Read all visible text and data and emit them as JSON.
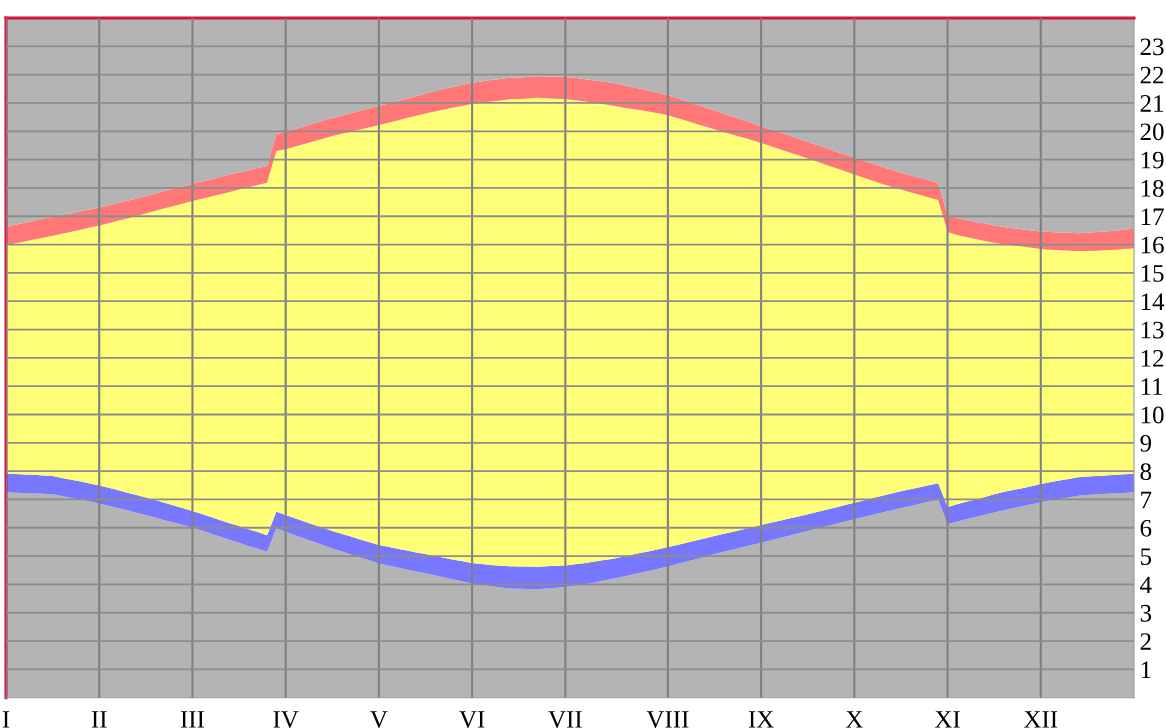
{
  "chart_data": {
    "type": "area",
    "stacked": true,
    "categories": [
      "I",
      null,
      null,
      null,
      null,
      null,
      null,
      null,
      null,
      null,
      "II",
      null,
      null,
      null,
      null,
      null,
      null,
      null,
      null,
      null,
      "III",
      null,
      null,
      null,
      null,
      null,
      null,
      null,
      null,
      null,
      "IV",
      null,
      null,
      null,
      null,
      null,
      null,
      null,
      null,
      null,
      "V",
      null,
      null,
      null,
      null,
      null,
      null,
      null,
      null,
      null,
      "VI",
      null,
      null,
      null,
      null,
      null,
      null,
      null,
      null,
      null,
      "VII",
      null,
      null,
      null,
      null,
      null,
      null,
      null,
      null,
      null,
      null,
      "VIII",
      null,
      null,
      null,
      null,
      null,
      null,
      null,
      null,
      null,
      "IX",
      null,
      null,
      null,
      null,
      null,
      null,
      null,
      null,
      null,
      "X",
      null,
      null,
      null,
      null,
      null,
      null,
      null,
      null,
      null,
      "XI",
      null,
      null,
      null,
      null,
      null,
      null,
      null,
      null,
      null,
      "XII",
      null,
      null,
      null,
      null,
      null,
      null,
      null,
      null,
      null,
      null
    ],
    "series": [
      {
        "color": "#b4b4b4",
        "values": [
          7.26,
          7.24,
          7.23,
          7.21,
          7.2,
          7.18,
          7.12,
          7.05,
          6.99,
          6.93,
          6.86,
          6.78,
          6.7,
          6.62,
          6.53,
          6.45,
          6.36,
          6.27,
          6.19,
          6.1,
          6.0,
          5.9,
          5.79,
          5.68,
          5.57,
          5.47,
          5.36,
          5.26,
          5.15,
          5.98,
          5.86,
          5.74,
          5.62,
          5.51,
          5.39,
          5.27,
          5.17,
          5.06,
          4.95,
          4.85,
          4.74,
          4.67,
          4.6,
          4.53,
          4.46,
          4.39,
          4.32,
          4.24,
          4.17,
          4.1,
          4.03,
          3.98,
          3.94,
          3.89,
          3.86,
          3.85,
          3.84,
          3.83,
          3.86,
          3.88,
          3.91,
          3.95,
          4.01,
          4.06,
          4.13,
          4.19,
          4.26,
          4.33,
          4.41,
          4.48,
          4.55,
          4.63,
          4.72,
          4.81,
          4.89,
          4.98,
          5.07,
          5.15,
          5.23,
          5.31,
          5.39,
          5.47,
          5.55,
          5.64,
          5.72,
          5.81,
          5.89,
          5.97,
          6.05,
          6.13,
          6.22,
          6.3,
          6.38,
          6.46,
          6.54,
          6.62,
          6.7,
          6.77,
          6.85,
          6.92,
          6.99,
          6.13,
          6.21,
          6.3,
          6.38,
          6.46,
          6.54,
          6.62,
          6.69,
          6.76,
          6.83,
          6.9,
          6.96,
          7.02,
          7.07,
          7.13,
          7.16,
          7.18,
          7.2,
          7.22,
          7.23,
          7.25
        ]
      },
      {
        "color": "#7777ff",
        "values": [
          0.66,
          0.66,
          0.65,
          0.66,
          0.65,
          0.65,
          0.64,
          0.65,
          0.64,
          0.63,
          0.63,
          0.63,
          0.63,
          0.62,
          0.63,
          0.62,
          0.62,
          0.61,
          0.6,
          0.59,
          0.59,
          0.59,
          0.59,
          0.59,
          0.59,
          0.59,
          0.59,
          0.59,
          0.59,
          0.59,
          0.59,
          0.6,
          0.6,
          0.6,
          0.61,
          0.62,
          0.62,
          0.63,
          0.64,
          0.64,
          0.65,
          0.66,
          0.66,
          0.67,
          0.67,
          0.68,
          0.68,
          0.7,
          0.7,
          0.72,
          0.73,
          0.74,
          0.75,
          0.77,
          0.78,
          0.78,
          0.79,
          0.79,
          0.78,
          0.78,
          0.76,
          0.76,
          0.74,
          0.74,
          0.72,
          0.71,
          0.71,
          0.71,
          0.7,
          0.69,
          0.69,
          0.69,
          0.67,
          0.66,
          0.66,
          0.65,
          0.64,
          0.64,
          0.63,
          0.63,
          0.63,
          0.63,
          0.63,
          0.61,
          0.61,
          0.59,
          0.59,
          0.59,
          0.59,
          0.59,
          0.58,
          0.58,
          0.58,
          0.59,
          0.59,
          0.59,
          0.59,
          0.59,
          0.58,
          0.58,
          0.58,
          0.6,
          0.62,
          0.62,
          0.62,
          0.63,
          0.64,
          0.64,
          0.64,
          0.64,
          0.64,
          0.65,
          0.65,
          0.65,
          0.65,
          0.65,
          0.65,
          0.65,
          0.65,
          0.65,
          0.66,
          0.66
        ]
      },
      {
        "color": "#ffff77",
        "values": [
          8.06,
          8.15,
          8.23,
          8.31,
          8.39,
          8.48,
          8.62,
          8.75,
          8.89,
          9.04,
          9.18,
          9.34,
          9.51,
          9.68,
          9.85,
          10.03,
          10.21,
          10.4,
          10.57,
          10.76,
          10.95,
          11.13,
          11.32,
          11.51,
          11.7,
          11.88,
          12.07,
          12.25,
          12.44,
          12.73,
          12.92,
          13.12,
          13.33,
          13.54,
          13.74,
          13.94,
          14.12,
          14.29,
          14.47,
          14.65,
          14.83,
          14.97,
          15.12,
          15.27,
          15.42,
          15.56,
          15.7,
          15.83,
          15.97,
          16.08,
          16.2,
          16.29,
          16.36,
          16.43,
          16.49,
          16.51,
          16.53,
          16.56,
          16.53,
          16.49,
          16.47,
          16.39,
          16.31,
          16.21,
          16.11,
          16.01,
          15.88,
          15.76,
          15.64,
          15.52,
          15.4,
          15.25,
          15.08,
          14.9,
          14.72,
          14.54,
          14.36,
          14.18,
          14.02,
          13.84,
          13.67,
          13.49,
          13.3,
          13.12,
          12.93,
          12.75,
          12.56,
          12.37,
          12.17,
          11.98,
          11.79,
          11.59,
          11.4,
          11.2,
          11.01,
          10.83,
          10.65,
          10.49,
          10.33,
          10.16,
          10.0,
          9.71,
          9.51,
          9.35,
          9.2,
          9.04,
          8.88,
          8.75,
          8.64,
          8.53,
          8.42,
          8.29,
          8.21,
          8.13,
          8.06,
          7.99,
          7.96,
          7.95,
          7.95,
          7.95,
          7.95,
          7.96
        ]
      },
      {
        "color": "#ff7777",
        "values": [
          0.65,
          0.65,
          0.66,
          0.66,
          0.67,
          0.67,
          0.67,
          0.66,
          0.66,
          0.64,
          0.64,
          0.63,
          0.63,
          0.63,
          0.62,
          0.61,
          0.61,
          0.61,
          0.61,
          0.61,
          0.61,
          0.61,
          0.61,
          0.61,
          0.61,
          0.61,
          0.6,
          0.6,
          0.59,
          0.6,
          0.61,
          0.62,
          0.63,
          0.63,
          0.63,
          0.64,
          0.64,
          0.66,
          0.66,
          0.67,
          0.67,
          0.68,
          0.69,
          0.68,
          0.69,
          0.7,
          0.71,
          0.73,
          0.73,
          0.74,
          0.75,
          0.75,
          0.76,
          0.76,
          0.76,
          0.76,
          0.76,
          0.76,
          0.76,
          0.78,
          0.78,
          0.79,
          0.79,
          0.79,
          0.8,
          0.8,
          0.79,
          0.77,
          0.75,
          0.74,
          0.72,
          0.7,
          0.7,
          0.69,
          0.68,
          0.67,
          0.66,
          0.65,
          0.63,
          0.62,
          0.6,
          0.59,
          0.59,
          0.59,
          0.59,
          0.59,
          0.59,
          0.59,
          0.6,
          0.59,
          0.59,
          0.6,
          0.6,
          0.6,
          0.6,
          0.6,
          0.6,
          0.6,
          0.6,
          0.61,
          0.61,
          0.58,
          0.6,
          0.6,
          0.6,
          0.61,
          0.61,
          0.61,
          0.61,
          0.61,
          0.61,
          0.62,
          0.62,
          0.63,
          0.64,
          0.63,
          0.65,
          0.66,
          0.66,
          0.67,
          0.69,
          0.69
        ]
      },
      {
        "color": "#b4b4b4",
        "values": [
          7.37,
          7.3,
          7.23,
          7.16,
          7.09,
          7.02,
          6.95,
          6.89,
          6.82,
          6.76,
          6.69,
          6.62,
          6.53,
          6.45,
          6.37,
          6.29,
          6.2,
          6.11,
          6.03,
          5.94,
          5.85,
          5.77,
          5.69,
          5.61,
          5.53,
          5.45,
          5.38,
          5.3,
          5.23,
          4.1,
          4.02,
          3.92,
          3.82,
          3.72,
          3.63,
          3.53,
          3.45,
          3.36,
          3.28,
          3.19,
          3.11,
          3.02,
          2.93,
          2.85,
          2.76,
          2.67,
          2.59,
          2.5,
          2.43,
          2.36,
          2.29,
          2.24,
          2.19,
          2.15,
          2.11,
          2.1,
          2.08,
          2.06,
          2.07,
          2.07,
          2.08,
          2.11,
          2.15,
          2.2,
          2.24,
          2.29,
          2.36,
          2.43,
          2.5,
          2.57,
          2.64,
          2.73,
          2.83,
          2.94,
          3.05,
          3.16,
          3.27,
          3.38,
          3.49,
          3.6,
          3.71,
          3.82,
          3.93,
          4.04,
          4.15,
          4.26,
          4.37,
          4.48,
          4.59,
          4.71,
          4.82,
          4.93,
          5.04,
          5.15,
          5.26,
          5.36,
          5.46,
          5.55,
          5.64,
          5.73,
          5.82,
          6.98,
          7.06,
          7.13,
          7.2,
          7.26,
          7.33,
          7.38,
          7.42,
          7.46,
          7.5,
          7.54,
          7.56,
          7.57,
          7.58,
          7.6,
          7.58,
          7.56,
          7.54,
          7.51,
          7.47,
          7.44
        ]
      }
    ],
    "ylim": [
      0,
      24
    ],
    "yticks": [
      1,
      2,
      3,
      4,
      5,
      6,
      7,
      8,
      9,
      10,
      11,
      12,
      13,
      14,
      15,
      16,
      17,
      18,
      19,
      20,
      21,
      22,
      23
    ],
    "grid": true
  }
}
